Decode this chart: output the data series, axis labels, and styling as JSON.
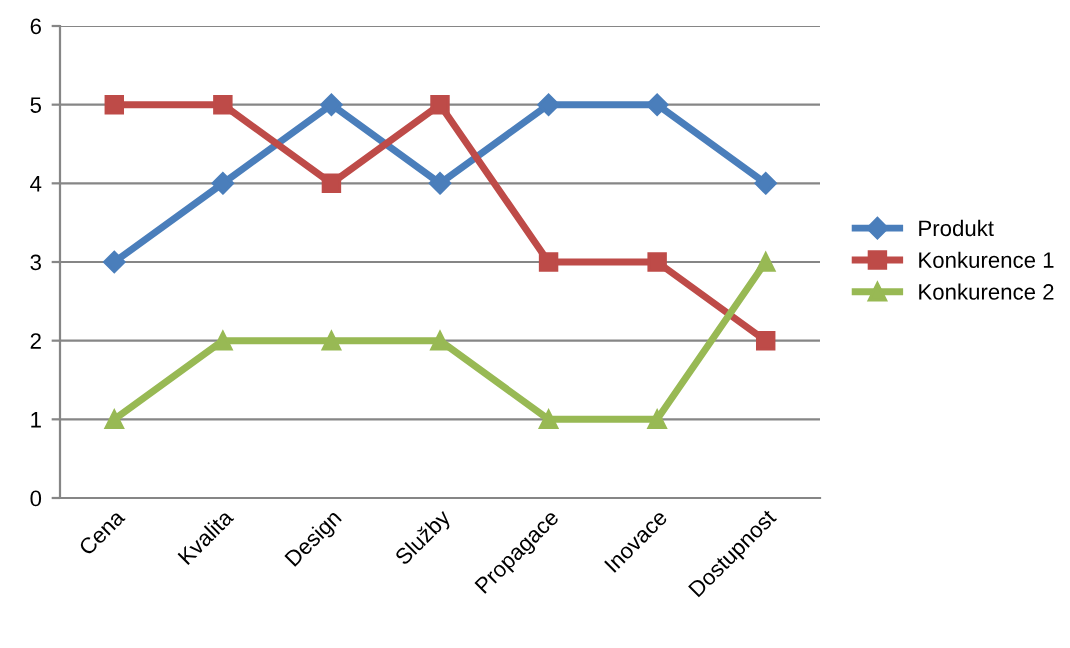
{
  "chart_data": {
    "type": "line",
    "categories": [
      "Cena",
      "Kvalita",
      "Design",
      "Služby",
      "Propagace",
      "Inovace",
      "Dostupnost"
    ],
    "series": [
      {
        "name": "Produkt",
        "color": "#4a7ebb",
        "marker": "diamond",
        "values": [
          3,
          4,
          5,
          4,
          5,
          5,
          4
        ]
      },
      {
        "name": "Konkurence 1",
        "color": "#be4b48",
        "marker": "square",
        "values": [
          5,
          5,
          4,
          5,
          3,
          3,
          2
        ]
      },
      {
        "name": "Konkurence 2",
        "color": "#98b954",
        "marker": "triangle",
        "values": [
          1,
          2,
          2,
          2,
          1,
          1,
          3
        ]
      }
    ],
    "ylim": [
      0,
      6
    ],
    "yticks": [
      0,
      1,
      2,
      3,
      4,
      5,
      6
    ],
    "grid": "y",
    "legend": "right",
    "line_style": "solid"
  }
}
